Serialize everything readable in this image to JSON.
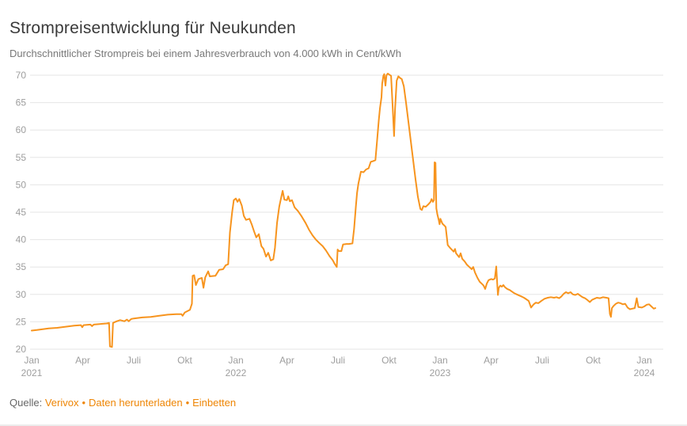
{
  "header": {
    "title": "Strompreisentwicklung für Neukunden",
    "subtitle": "Durchschnittlicher Strompreis bei einem Jahresverbrauch von 4.000 kWh in Cent/kWh"
  },
  "footer": {
    "source_label": "Quelle:",
    "links": [
      "Verivox",
      "Daten herunterladen",
      "Einbetten"
    ],
    "separator": "•"
  },
  "colors": {
    "line": "#f7941e",
    "link": "#ee8504",
    "grid": "#e6e6e6",
    "axis_label": "#9e9e9e",
    "title": "#3a3a3a",
    "subtitle": "#787878"
  },
  "chart_data": {
    "type": "line",
    "title": "Strompreisentwicklung für Neukunden",
    "subtitle": "Durchschnittlicher Strompreis bei einem Jahresverbrauch von 4.000 kWh in Cent/kWh",
    "xlabel": "",
    "ylabel": "Cent/kWh",
    "x_unit": "months since Jan 2021",
    "ylim": [
      20,
      70
    ],
    "grid": true,
    "legend": false,
    "y_ticks": [
      20,
      25,
      30,
      35,
      40,
      45,
      50,
      55,
      60,
      65,
      70
    ],
    "x_ticks": [
      {
        "m": 0,
        "label": "Jan",
        "year": "2021"
      },
      {
        "m": 3,
        "label": "Apr"
      },
      {
        "m": 6,
        "label": "Juli"
      },
      {
        "m": 9,
        "label": "Okt"
      },
      {
        "m": 12,
        "label": "Jan",
        "year": "2022"
      },
      {
        "m": 15,
        "label": "Apr"
      },
      {
        "m": 18,
        "label": "Juli"
      },
      {
        "m": 21,
        "label": "Okt"
      },
      {
        "m": 24,
        "label": "Jan",
        "year": "2023"
      },
      {
        "m": 27,
        "label": "Apr"
      },
      {
        "m": 30,
        "label": "Juli"
      },
      {
        "m": 33,
        "label": "Okt"
      },
      {
        "m": 36,
        "label": "Jan",
        "year": "2024"
      }
    ],
    "series": [
      {
        "name": "Durchschnittlicher Strompreis (Cent/kWh)",
        "points": [
          [
            0,
            23.4
          ],
          [
            0.3,
            23.5
          ],
          [
            1,
            23.8
          ],
          [
            1.5,
            23.9
          ],
          [
            2,
            24.1
          ],
          [
            2.5,
            24.3
          ],
          [
            2.9,
            24.4
          ],
          [
            2.97,
            24.0
          ],
          [
            3.05,
            24.4
          ],
          [
            3.45,
            24.5
          ],
          [
            3.55,
            24.2
          ],
          [
            3.65,
            24.5
          ],
          [
            4,
            24.6
          ],
          [
            4.4,
            24.7
          ],
          [
            4.55,
            24.8
          ],
          [
            4.6,
            20.5
          ],
          [
            4.72,
            20.4
          ],
          [
            4.78,
            24.8
          ],
          [
            5,
            25.1
          ],
          [
            5.2,
            25.3
          ],
          [
            5.45,
            25.1
          ],
          [
            5.6,
            25.4
          ],
          [
            5.7,
            25.1
          ],
          [
            5.85,
            25.5
          ],
          [
            6,
            25.6
          ],
          [
            6.5,
            25.8
          ],
          [
            7,
            25.9
          ],
          [
            7.5,
            26.1
          ],
          [
            8,
            26.3
          ],
          [
            8.5,
            26.4
          ],
          [
            8.8,
            26.4
          ],
          [
            8.87,
            26.1
          ],
          [
            9,
            26.7
          ],
          [
            9.3,
            27.2
          ],
          [
            9.42,
            28.3
          ],
          [
            9.46,
            33.4
          ],
          [
            9.55,
            33.5
          ],
          [
            9.65,
            31.7
          ],
          [
            9.8,
            32.8
          ],
          [
            10,
            33.0
          ],
          [
            10.1,
            31.2
          ],
          [
            10.2,
            33.1
          ],
          [
            10.37,
            34.2
          ],
          [
            10.47,
            33.3
          ],
          [
            10.8,
            33.4
          ],
          [
            11.02,
            34.5
          ],
          [
            11.25,
            34.6
          ],
          [
            11.4,
            35.3
          ],
          [
            11.55,
            35.5
          ],
          [
            11.65,
            41.3
          ],
          [
            11.78,
            45.0
          ],
          [
            11.88,
            47.2
          ],
          [
            12,
            47.5
          ],
          [
            12.1,
            46.9
          ],
          [
            12.2,
            47.4
          ],
          [
            12.35,
            46.2
          ],
          [
            12.47,
            44.3
          ],
          [
            12.6,
            43.6
          ],
          [
            12.8,
            43.8
          ],
          [
            12.93,
            42.8
          ],
          [
            13.07,
            41.5
          ],
          [
            13.2,
            40.4
          ],
          [
            13.35,
            41.0
          ],
          [
            13.5,
            38.8
          ],
          [
            13.63,
            38.3
          ],
          [
            13.77,
            36.9
          ],
          [
            13.9,
            37.6
          ],
          [
            14.05,
            36.2
          ],
          [
            14.2,
            36.4
          ],
          [
            14.3,
            38.5
          ],
          [
            14.42,
            43.0
          ],
          [
            14.55,
            46.0
          ],
          [
            14.65,
            47.5
          ],
          [
            14.75,
            48.9
          ],
          [
            14.85,
            47.3
          ],
          [
            15,
            47.2
          ],
          [
            15.08,
            47.9
          ],
          [
            15.17,
            47.0
          ],
          [
            15.3,
            47.2
          ],
          [
            15.45,
            45.9
          ],
          [
            15.65,
            45.2
          ],
          [
            15.85,
            44.3
          ],
          [
            16.1,
            43.0
          ],
          [
            16.3,
            41.8
          ],
          [
            16.5,
            40.8
          ],
          [
            16.7,
            40.0
          ],
          [
            16.9,
            39.4
          ],
          [
            17.1,
            38.8
          ],
          [
            17.3,
            38.0
          ],
          [
            17.5,
            37.0
          ],
          [
            17.7,
            36.2
          ],
          [
            17.8,
            35.6
          ],
          [
            17.93,
            35.0
          ],
          [
            17.98,
            38.2
          ],
          [
            18.05,
            37.9
          ],
          [
            18.2,
            37.9
          ],
          [
            18.3,
            39.1
          ],
          [
            18.5,
            39.2
          ],
          [
            18.65,
            39.2
          ],
          [
            18.85,
            39.3
          ],
          [
            18.95,
            42.0
          ],
          [
            19.05,
            46.0
          ],
          [
            19.12,
            48.5
          ],
          [
            19.2,
            50.2
          ],
          [
            19.35,
            52.4
          ],
          [
            19.5,
            52.3
          ],
          [
            19.65,
            52.8
          ],
          [
            19.8,
            53.0
          ],
          [
            19.93,
            54.2
          ],
          [
            20.05,
            54.3
          ],
          [
            20.2,
            54.5
          ],
          [
            20.3,
            58.0
          ],
          [
            20.4,
            61.8
          ],
          [
            20.47,
            64.0
          ],
          [
            20.56,
            66.0
          ],
          [
            20.6,
            68.5
          ],
          [
            20.67,
            69.9
          ],
          [
            20.72,
            70.2
          ],
          [
            20.79,
            68.1
          ],
          [
            20.85,
            70.0
          ],
          [
            20.93,
            70.3
          ],
          [
            21.02,
            70.1
          ],
          [
            21.12,
            69.9
          ],
          [
            21.22,
            64.0
          ],
          [
            21.3,
            58.9
          ],
          [
            21.36,
            64.0
          ],
          [
            21.45,
            69.0
          ],
          [
            21.55,
            69.8
          ],
          [
            21.65,
            69.5
          ],
          [
            21.75,
            69.3
          ],
          [
            21.87,
            68.0
          ],
          [
            22,
            65.0
          ],
          [
            22.14,
            61.5
          ],
          [
            22.28,
            58.0
          ],
          [
            22.42,
            54.5
          ],
          [
            22.56,
            51.0
          ],
          [
            22.7,
            47.8
          ],
          [
            22.84,
            45.6
          ],
          [
            22.93,
            45.4
          ],
          [
            23.02,
            46.1
          ],
          [
            23.16,
            46.0
          ],
          [
            23.3,
            46.4
          ],
          [
            23.44,
            46.9
          ],
          [
            23.5,
            47.4
          ],
          [
            23.58,
            46.9
          ],
          [
            23.64,
            47.2
          ],
          [
            23.68,
            54.1
          ],
          [
            23.73,
            54.0
          ],
          [
            23.78,
            45.7
          ],
          [
            23.84,
            44.6
          ],
          [
            23.92,
            43.6
          ],
          [
            23.97,
            42.8
          ],
          [
            24.02,
            43.8
          ],
          [
            24.14,
            42.9
          ],
          [
            24.24,
            42.6
          ],
          [
            24.33,
            42.3
          ],
          [
            24.45,
            39.0
          ],
          [
            24.56,
            38.6
          ],
          [
            24.65,
            38.3
          ],
          [
            24.8,
            37.8
          ],
          [
            24.88,
            38.3
          ],
          [
            24.94,
            37.5
          ],
          [
            25.02,
            37.2
          ],
          [
            25.12,
            36.8
          ],
          [
            25.21,
            37.5
          ],
          [
            25.3,
            36.5
          ],
          [
            25.45,
            36.0
          ],
          [
            25.58,
            35.4
          ],
          [
            25.72,
            35.0
          ],
          [
            25.86,
            34.6
          ],
          [
            25.95,
            35.0
          ],
          [
            26.05,
            34.0
          ],
          [
            26.2,
            33.0
          ],
          [
            26.33,
            32.3
          ],
          [
            26.47,
            31.9
          ],
          [
            26.56,
            31.6
          ],
          [
            26.65,
            31.0
          ],
          [
            26.75,
            32.0
          ],
          [
            26.85,
            32.6
          ],
          [
            27,
            32.8
          ],
          [
            27.12,
            32.7
          ],
          [
            27.22,
            32.9
          ],
          [
            27.3,
            35.1
          ],
          [
            27.36,
            32.0
          ],
          [
            27.4,
            29.9
          ],
          [
            27.45,
            31.2
          ],
          [
            27.54,
            31.6
          ],
          [
            27.63,
            31.4
          ],
          [
            27.72,
            31.7
          ],
          [
            27.82,
            31.3
          ],
          [
            27.95,
            31.0
          ],
          [
            28.1,
            30.8
          ],
          [
            28.23,
            30.5
          ],
          [
            28.37,
            30.2
          ],
          [
            28.51,
            30.0
          ],
          [
            28.65,
            29.8
          ],
          [
            28.8,
            29.6
          ],
          [
            28.93,
            29.4
          ],
          [
            29.07,
            29.1
          ],
          [
            29.21,
            28.8
          ],
          [
            29.35,
            27.6
          ],
          [
            29.5,
            28.2
          ],
          [
            29.63,
            28.5
          ],
          [
            29.77,
            28.4
          ],
          [
            29.95,
            28.8
          ],
          [
            30.14,
            29.2
          ],
          [
            30.33,
            29.4
          ],
          [
            30.51,
            29.5
          ],
          [
            30.7,
            29.4
          ],
          [
            30.84,
            29.5
          ],
          [
            31,
            29.3
          ],
          [
            31.12,
            29.6
          ],
          [
            31.26,
            30.1
          ],
          [
            31.4,
            30.4
          ],
          [
            31.53,
            30.2
          ],
          [
            31.67,
            30.4
          ],
          [
            31.81,
            30.0
          ],
          [
            31.95,
            29.9
          ],
          [
            32.1,
            30.1
          ],
          [
            32.23,
            29.8
          ],
          [
            32.37,
            29.5
          ],
          [
            32.51,
            29.3
          ],
          [
            32.65,
            29.0
          ],
          [
            32.8,
            28.6
          ],
          [
            32.93,
            29.0
          ],
          [
            33.07,
            29.2
          ],
          [
            33.21,
            29.4
          ],
          [
            33.4,
            29.3
          ],
          [
            33.58,
            29.5
          ],
          [
            33.77,
            29.4
          ],
          [
            33.9,
            29.3
          ],
          [
            33.98,
            26.4
          ],
          [
            34.04,
            25.9
          ],
          [
            34.1,
            27.5
          ],
          [
            34.2,
            27.9
          ],
          [
            34.33,
            28.3
          ],
          [
            34.47,
            28.5
          ],
          [
            34.6,
            28.4
          ],
          [
            34.74,
            28.2
          ],
          [
            34.88,
            28.3
          ],
          [
            35.02,
            27.6
          ],
          [
            35.16,
            27.3
          ],
          [
            35.3,
            27.4
          ],
          [
            35.44,
            27.5
          ],
          [
            35.56,
            29.3
          ],
          [
            35.65,
            27.7
          ],
          [
            35.86,
            27.6
          ],
          [
            36,
            27.8
          ],
          [
            36.14,
            28.1
          ],
          [
            36.28,
            28.2
          ],
          [
            36.42,
            27.8
          ],
          [
            36.56,
            27.4
          ],
          [
            36.65,
            27.5
          ]
        ]
      }
    ]
  }
}
